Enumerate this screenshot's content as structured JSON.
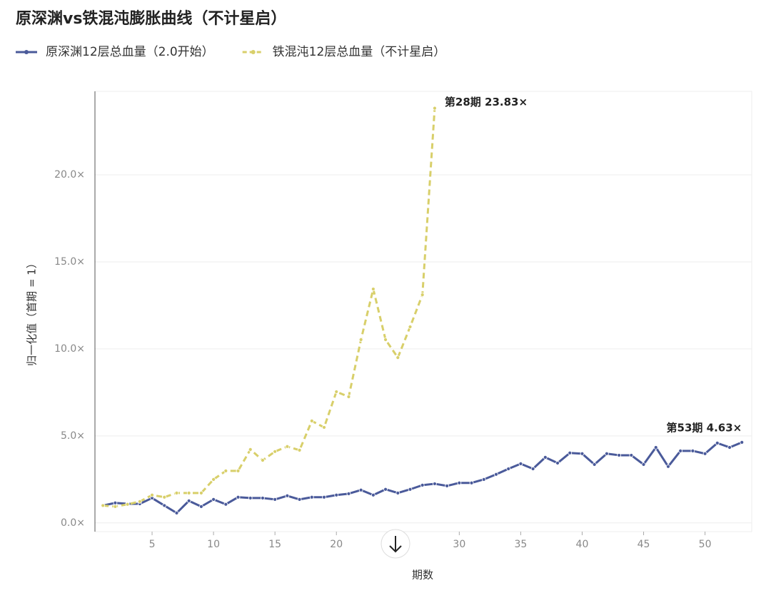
{
  "chart_data": {
    "type": "line",
    "title": "原深渊vs铁混沌膨胀曲线（不计星启）",
    "x_label": "期数",
    "y_label": "归一化值（首期 = 1）",
    "xlim": [
      0.35,
      53.8
    ],
    "ylim": [
      -0.5,
      24.8
    ],
    "xticks": [
      5,
      10,
      15,
      20,
      25,
      30,
      35,
      40,
      45,
      50
    ],
    "yticks": [
      {
        "value": 0,
        "label": "0.0×"
      },
      {
        "value": 5,
        "label": "5.0×"
      },
      {
        "value": 10,
        "label": "10.0×"
      },
      {
        "value": 15,
        "label": "15.0×"
      },
      {
        "value": 20,
        "label": "20.0×"
      }
    ],
    "grid": true,
    "legend": "top-left",
    "series": [
      {
        "name": "原深渊12层总血量（2.0开始）",
        "color": "#4a5a9a",
        "dashed": false,
        "x": [
          1,
          2,
          3,
          4,
          5,
          6,
          7,
          8,
          9,
          10,
          11,
          12,
          13,
          14,
          15,
          16,
          17,
          18,
          19,
          20,
          21,
          22,
          23,
          24,
          25,
          26,
          27,
          28,
          29,
          30,
          31,
          32,
          33,
          34,
          35,
          36,
          37,
          38,
          39,
          40,
          41,
          42,
          43,
          44,
          45,
          46,
          47,
          48,
          49,
          50,
          51,
          52,
          53
        ],
        "values": [
          1.0,
          1.15,
          1.1,
          1.1,
          1.43,
          1.0,
          0.57,
          1.27,
          0.94,
          1.35,
          1.07,
          1.48,
          1.43,
          1.43,
          1.35,
          1.56,
          1.35,
          1.48,
          1.48,
          1.6,
          1.68,
          1.89,
          1.6,
          1.93,
          1.72,
          1.93,
          2.17,
          2.25,
          2.13,
          2.3,
          2.3,
          2.5,
          2.79,
          3.11,
          3.4,
          3.11,
          3.77,
          3.44,
          4.02,
          3.98,
          3.36,
          3.98,
          3.89,
          3.89,
          3.36,
          4.34,
          3.24,
          4.14,
          4.14,
          3.98,
          4.59,
          4.34,
          4.63
        ]
      },
      {
        "name": "铁混沌12层总血量（不计星启）",
        "color": "#d8cf6a",
        "dashed": true,
        "x": [
          1,
          2,
          3,
          4,
          5,
          6,
          7,
          8,
          9,
          10,
          11,
          12,
          13,
          14,
          15,
          16,
          17,
          18,
          19,
          20,
          21,
          22,
          23,
          24,
          25,
          26,
          27,
          28
        ],
        "values": [
          1.0,
          0.94,
          1.07,
          1.23,
          1.6,
          1.48,
          1.72,
          1.72,
          1.72,
          2.5,
          2.99,
          2.99,
          4.22,
          3.6,
          4.1,
          4.39,
          4.18,
          5.86,
          5.49,
          7.54,
          7.25,
          10.53,
          13.44,
          10.53,
          9.5,
          11.27,
          13.11,
          23.83
        ]
      }
    ],
    "annotations": [
      {
        "text": "第28期 23.83×",
        "x": 28,
        "y": 23.83
      },
      {
        "text": "第53期 4.63×",
        "x": 53,
        "y": 4.63
      }
    ]
  }
}
